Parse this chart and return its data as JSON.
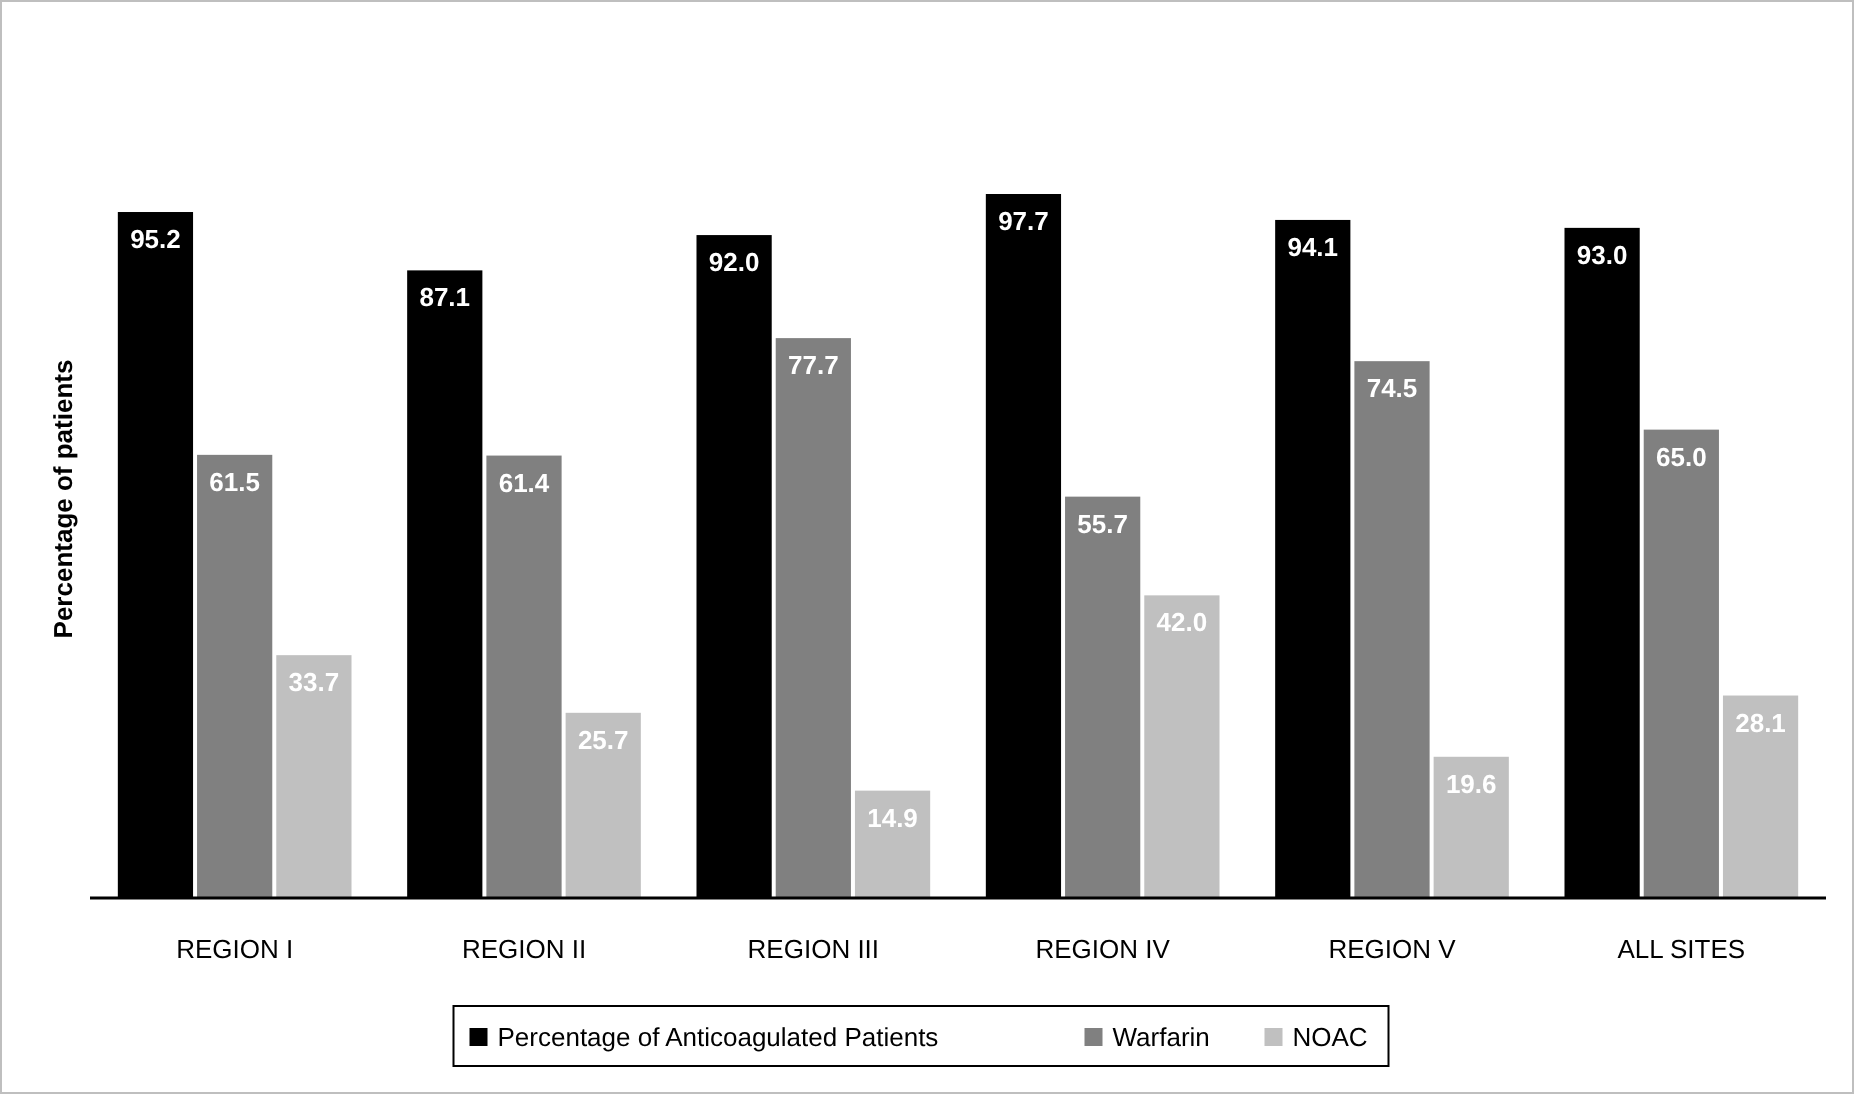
{
  "chart_data": {
    "type": "bar",
    "ylabel": "Percentage of patients",
    "categories": [
      "REGION I",
      "REGION II",
      "REGION III",
      "REGION IV",
      "REGION V",
      "ALL SITES"
    ],
    "legend": "bottom",
    "series": [
      {
        "name": "Percentage of Anticoagulated Patients",
        "color": "#000000",
        "values": [
          95.2,
          87.1,
          92.0,
          97.7,
          94.1,
          93.0
        ],
        "value_labels": [
          "95.2",
          "87.1",
          "92.0",
          "97.7",
          "94.1",
          "93.0"
        ]
      },
      {
        "name": "Warfarin",
        "color": "#808080",
        "values": [
          61.5,
          61.4,
          77.7,
          55.7,
          74.5,
          65.0
        ],
        "value_labels": [
          "61.5",
          "61.4",
          "77.7",
          "55.7",
          "74.5",
          "65.0"
        ]
      },
      {
        "name": "NOAC",
        "color": "#c0c0c0",
        "values": [
          33.7,
          25.7,
          14.9,
          42.0,
          19.6,
          28.1
        ],
        "value_labels": [
          "33.7",
          "25.7",
          "14.9",
          "42.0",
          "19.6",
          "28.1"
        ]
      }
    ]
  }
}
